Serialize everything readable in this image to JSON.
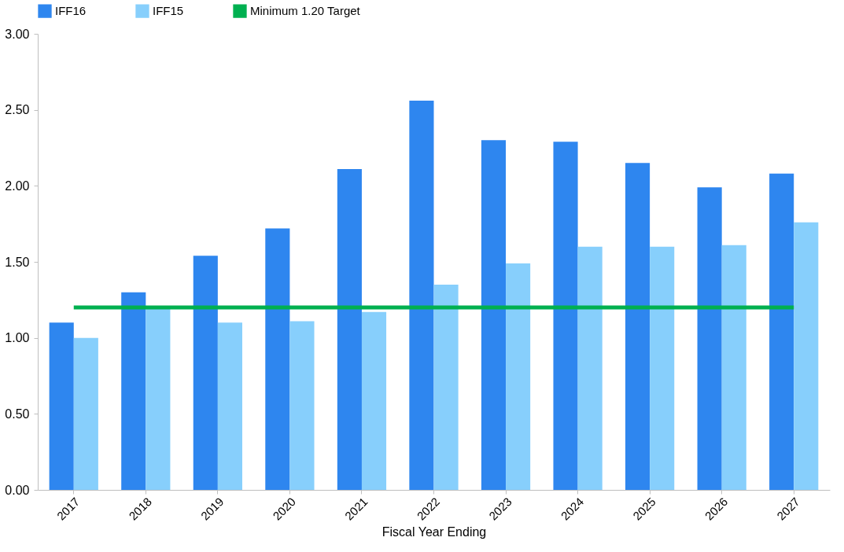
{
  "chart_data": {
    "type": "bar",
    "xlabel": "Fiscal Year Ending",
    "categories": [
      "2017",
      "2018",
      "2019",
      "2020",
      "2021",
      "2022",
      "2023",
      "2024",
      "2025",
      "2026",
      "2027"
    ],
    "series": [
      {
        "name": "IFF16",
        "color": "#2e86ef",
        "values": [
          1.1,
          1.3,
          1.54,
          1.72,
          2.11,
          2.56,
          2.3,
          2.29,
          2.15,
          1.99,
          2.08
        ]
      },
      {
        "name": "IFF15",
        "color": "#87cffc",
        "values": [
          1.0,
          1.2,
          1.1,
          1.11,
          1.17,
          1.35,
          1.49,
          1.6,
          1.6,
          1.61,
          1.76
        ]
      },
      {
        "name": "Minimum 1.20 Target",
        "type": "line",
        "color": "#00b050",
        "values": [
          1.2,
          1.2,
          1.2,
          1.2,
          1.2,
          1.2,
          1.2,
          1.2,
          1.2,
          1.2,
          1.2
        ]
      }
    ],
    "ylim": [
      0,
      3
    ],
    "yticks": [
      {
        "value": 0,
        "label": "0.00"
      },
      {
        "value": 0.5,
        "label": "0.50"
      },
      {
        "value": 1,
        "label": "1.00"
      },
      {
        "value": 1.5,
        "label": "1.50"
      },
      {
        "value": 2,
        "label": "2.00"
      },
      {
        "value": 2.5,
        "label": "2.50"
      },
      {
        "value": 3,
        "label": "3.00"
      }
    ],
    "grid": false,
    "legend": "top"
  }
}
